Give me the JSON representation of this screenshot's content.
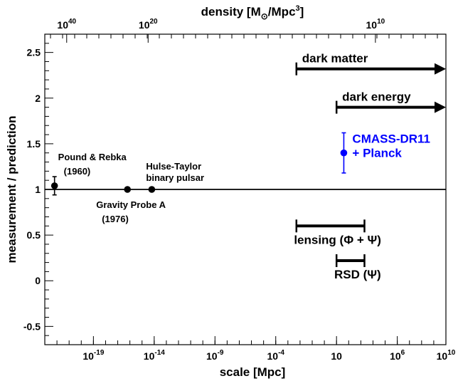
{
  "chart_data": {
    "type": "scatter",
    "title": "",
    "xlabel": "scale [Mpc]",
    "ylabel": "measurement / prediction",
    "top_axis_label_parts": {
      "pre": "density [M",
      "sun": "⊙",
      "mid": "/Mpc",
      "sup": "3",
      "post": "]"
    },
    "x_scale": "log",
    "xlim": [
      1e-23,
      10000000000.0
    ],
    "ylim": [
      -0.7,
      2.7
    ],
    "grid": false,
    "x_ticks": [
      {
        "exp": -19,
        "base": "10",
        "sup": "-19"
      },
      {
        "exp": -14,
        "base": "10",
        "sup": "-14"
      },
      {
        "exp": -9,
        "base": "10",
        "sup": "-9"
      },
      {
        "exp": -4,
        "base": "10",
        "sup": "-4"
      },
      {
        "exp": 1,
        "base": "10",
        "sup": ""
      },
      {
        "exp": 6,
        "base": "10",
        "sup": "6"
      },
      {
        "exp": 10,
        "base": "10",
        "sup": "10"
      }
    ],
    "y_ticks": [
      "-0.5",
      "0",
      "0.5",
      "1",
      "1.5",
      "2",
      "2.5"
    ],
    "top_ticks": [
      {
        "scale_exp": -21.2,
        "base": "10",
        "sup": "40"
      },
      {
        "scale_exp": -14.5,
        "base": "10",
        "sup": "20"
      },
      {
        "scale_exp": 4.2,
        "base": "10",
        "sup": "10"
      }
    ],
    "reference_line": 1,
    "points": [
      {
        "label_lines": [
          "Pound & Rebka",
          "(1960)"
        ],
        "x_exp": -22.2,
        "y": 1.04,
        "yerr": 0.1,
        "color": "#000000"
      },
      {
        "label_lines": [
          "Gravity Probe A",
          "(1976)"
        ],
        "x_exp": -16.2,
        "y": 1.0,
        "yerr": 0,
        "color": "#000000"
      },
      {
        "label_lines": [
          "Hulse-Taylor",
          "binary pulsar"
        ],
        "x_exp": -14.2,
        "y": 1.0,
        "yerr": 0,
        "color": "#000000"
      },
      {
        "label_lines": [
          "CMASS-DR11",
          "+ Planck"
        ],
        "x_exp": 1.6,
        "y": 1.4,
        "yerr": 0.22,
        "color": "#0000ff"
      }
    ],
    "ranges": [
      {
        "label": "dark matter",
        "x_from_exp": -2.3,
        "x_to_exp": 10,
        "y": 2.32,
        "arrow": true
      },
      {
        "label": "dark energy",
        "x_from_exp": 1.0,
        "x_to_exp": 10,
        "y": 1.9,
        "arrow": true
      },
      {
        "label": "lensing (Φ + Ψ)",
        "x_from_exp": -2.3,
        "x_to_exp": 3.3,
        "y": 0.6,
        "arrow": false
      },
      {
        "label": "RSD (Ψ)",
        "x_from_exp": 1.0,
        "x_to_exp": 3.3,
        "y": 0.22,
        "arrow": false
      }
    ]
  }
}
